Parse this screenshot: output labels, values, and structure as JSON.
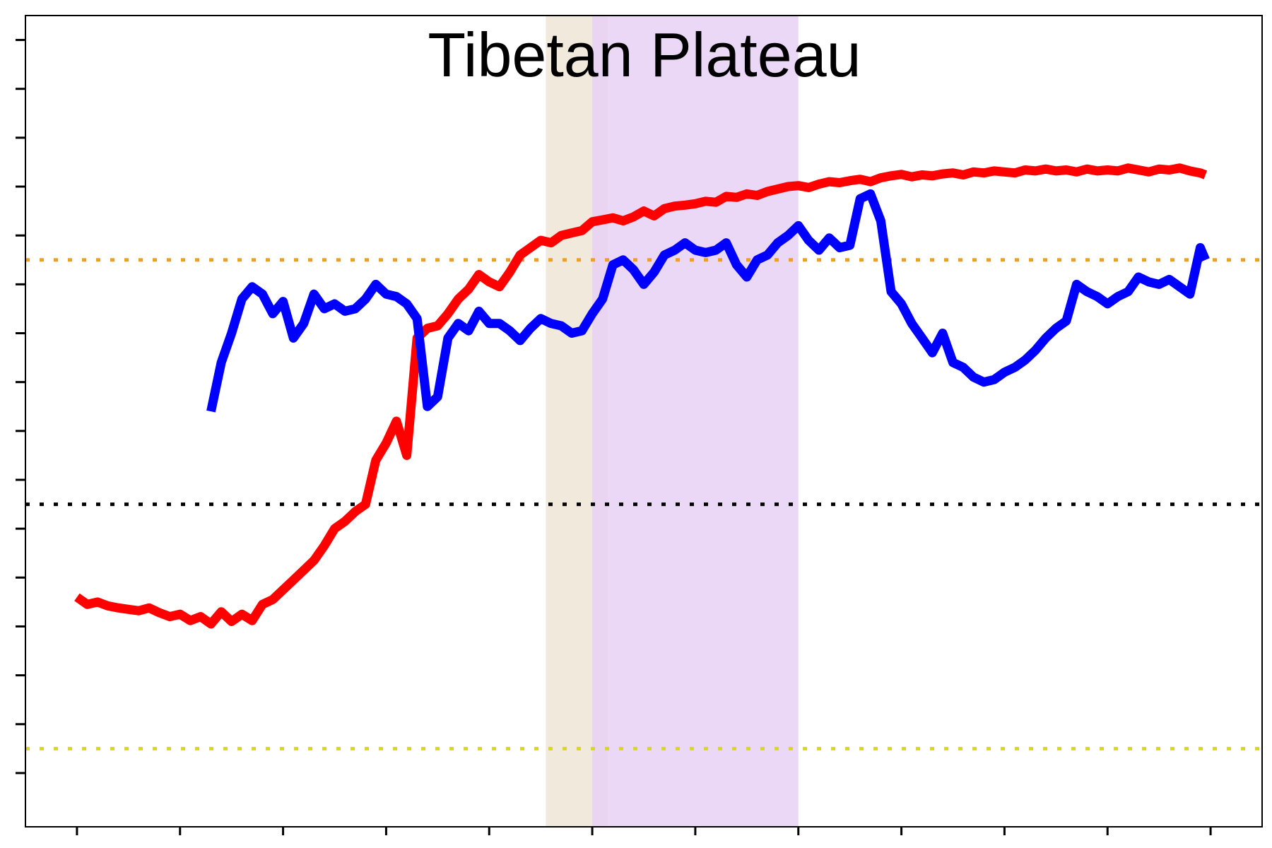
{
  "chart_data": {
    "type": "line",
    "title": "Tibetan Plateau",
    "xlabel": "",
    "ylabel": "",
    "xlim": [
      -0.5,
      11.5
    ],
    "ylim": [
      -1.6,
      15.0
    ],
    "x_ticks": [
      0,
      1,
      2,
      3,
      4,
      5,
      6,
      7,
      8,
      9,
      10,
      11
    ],
    "y_ticks": [
      -0.5,
      0.5,
      1.5,
      2.5,
      3.5,
      4.5,
      5.5,
      6.5,
      7.5,
      8.5,
      9.5,
      10.5,
      11.5,
      12.5,
      13.5,
      14.5
    ],
    "grid": false,
    "legend": "none",
    "shaded_regions": [
      {
        "x0": 4.55,
        "x1": 5.15,
        "color": "#ede5d6"
      },
      {
        "x0": 5.0,
        "x1": 7.0,
        "color": "#e8d1f6"
      }
    ],
    "reference_lines": [
      {
        "y": 10.0,
        "color": "#f0a020"
      },
      {
        "y": 5.0,
        "color": "#000000"
      },
      {
        "y": 0.0,
        "color": "#d8d820"
      }
    ],
    "series": [
      {
        "color": "#ff0000",
        "x": [
          0.0,
          0.1,
          0.2,
          0.3,
          0.4,
          0.5,
          0.6,
          0.7,
          0.8,
          0.9,
          1.0,
          1.1,
          1.2,
          1.3,
          1.4,
          1.5,
          1.6,
          1.7,
          1.8,
          1.9,
          2.0,
          2.1,
          2.2,
          2.3,
          2.4,
          2.5,
          2.6,
          2.7,
          2.8,
          2.9,
          3.0,
          3.1,
          3.2,
          3.3,
          3.4,
          3.5,
          3.6,
          3.7,
          3.8,
          3.9,
          4.0,
          4.1,
          4.2,
          4.3,
          4.4,
          4.5,
          4.6,
          4.7,
          4.8,
          4.9,
          5.0,
          5.1,
          5.2,
          5.3,
          5.4,
          5.5,
          5.6,
          5.7,
          5.8,
          5.9,
          6.0,
          6.1,
          6.2,
          6.3,
          6.4,
          6.5,
          6.6,
          6.7,
          6.8,
          6.9,
          7.0,
          7.1,
          7.2,
          7.3,
          7.4,
          7.5,
          7.6,
          7.7,
          7.8,
          7.9,
          8.0,
          8.1,
          8.2,
          8.3,
          8.4,
          8.5,
          8.6,
          8.7,
          8.8,
          8.9,
          9.0,
          9.1,
          9.2,
          9.3,
          9.4,
          9.5,
          9.6,
          9.7,
          9.8,
          9.9,
          10.0,
          10.1,
          10.2,
          10.3,
          10.4,
          10.5,
          10.6,
          10.7,
          10.8,
          10.9,
          10.95
        ],
        "values": [
          3.1,
          2.95,
          3.0,
          2.92,
          2.88,
          2.85,
          2.82,
          2.88,
          2.78,
          2.7,
          2.75,
          2.62,
          2.7,
          2.55,
          2.8,
          2.6,
          2.75,
          2.62,
          2.95,
          3.05,
          3.25,
          3.45,
          3.65,
          3.85,
          4.15,
          4.5,
          4.65,
          4.85,
          5.0,
          5.9,
          6.25,
          6.7,
          6.0,
          8.4,
          8.6,
          8.65,
          8.9,
          9.2,
          9.4,
          9.7,
          9.55,
          9.45,
          9.75,
          10.1,
          10.25,
          10.4,
          10.35,
          10.5,
          10.55,
          10.6,
          10.78,
          10.82,
          10.86,
          10.8,
          10.88,
          11.0,
          10.9,
          11.05,
          11.1,
          11.12,
          11.15,
          11.2,
          11.18,
          11.3,
          11.28,
          11.35,
          11.32,
          11.4,
          11.45,
          11.5,
          11.52,
          11.48,
          11.55,
          11.6,
          11.58,
          11.62,
          11.65,
          11.6,
          11.68,
          11.72,
          11.75,
          11.7,
          11.74,
          11.72,
          11.76,
          11.78,
          11.74,
          11.8,
          11.78,
          11.82,
          11.8,
          11.78,
          11.84,
          11.82,
          11.86,
          11.82,
          11.84,
          11.8,
          11.86,
          11.82,
          11.84,
          11.82,
          11.88,
          11.84,
          11.8,
          11.86,
          11.84,
          11.88,
          11.82,
          11.78,
          11.74
        ]
      },
      {
        "color": "#0000ff",
        "x": [
          1.3,
          1.4,
          1.5,
          1.6,
          1.7,
          1.8,
          1.9,
          2.0,
          2.1,
          2.2,
          2.3,
          2.4,
          2.5,
          2.6,
          2.7,
          2.8,
          2.9,
          3.0,
          3.1,
          3.2,
          3.3,
          3.4,
          3.5,
          3.6,
          3.7,
          3.8,
          3.9,
          4.0,
          4.1,
          4.2,
          4.3,
          4.4,
          4.5,
          4.6,
          4.7,
          4.8,
          4.9,
          5.0,
          5.1,
          5.2,
          5.3,
          5.4,
          5.5,
          5.6,
          5.7,
          5.8,
          5.9,
          6.0,
          6.1,
          6.2,
          6.3,
          6.4,
          6.5,
          6.6,
          6.7,
          6.8,
          6.9,
          7.0,
          7.1,
          7.2,
          7.3,
          7.4,
          7.5,
          7.6,
          7.7,
          7.8,
          7.9,
          8.0,
          8.1,
          8.2,
          8.3,
          8.4,
          8.5,
          8.6,
          8.7,
          8.8,
          8.9,
          9.0,
          9.1,
          9.2,
          9.3,
          9.4,
          9.5,
          9.6,
          9.7,
          9.8,
          9.9,
          10.0,
          10.1,
          10.2,
          10.3,
          10.4,
          10.5,
          10.6,
          10.7,
          10.8,
          10.9,
          10.95
        ],
        "values": [
          6.9,
          7.9,
          8.5,
          9.2,
          9.45,
          9.3,
          8.9,
          9.15,
          8.4,
          8.7,
          9.3,
          9.0,
          9.1,
          8.95,
          9.0,
          9.2,
          9.5,
          9.3,
          9.25,
          9.1,
          8.8,
          7.0,
          7.2,
          8.4,
          8.7,
          8.55,
          8.95,
          8.7,
          8.7,
          8.55,
          8.35,
          8.6,
          8.8,
          8.7,
          8.65,
          8.5,
          8.55,
          8.9,
          9.2,
          9.9,
          10.0,
          9.8,
          9.5,
          9.75,
          10.1,
          10.2,
          10.35,
          10.2,
          10.15,
          10.2,
          10.35,
          9.9,
          9.65,
          10.0,
          10.1,
          10.35,
          10.5,
          10.7,
          10.4,
          10.2,
          10.45,
          10.25,
          10.3,
          11.25,
          11.35,
          10.8,
          9.35,
          9.1,
          8.7,
          8.4,
          8.1,
          8.5,
          7.9,
          7.8,
          7.6,
          7.5,
          7.55,
          7.7,
          7.8,
          7.95,
          8.15,
          8.4,
          8.6,
          8.75,
          9.5,
          9.35,
          9.25,
          9.1,
          9.25,
          9.35,
          9.65,
          9.55,
          9.5,
          9.6,
          9.45,
          9.3,
          10.25,
          10.0
        ]
      }
    ]
  }
}
